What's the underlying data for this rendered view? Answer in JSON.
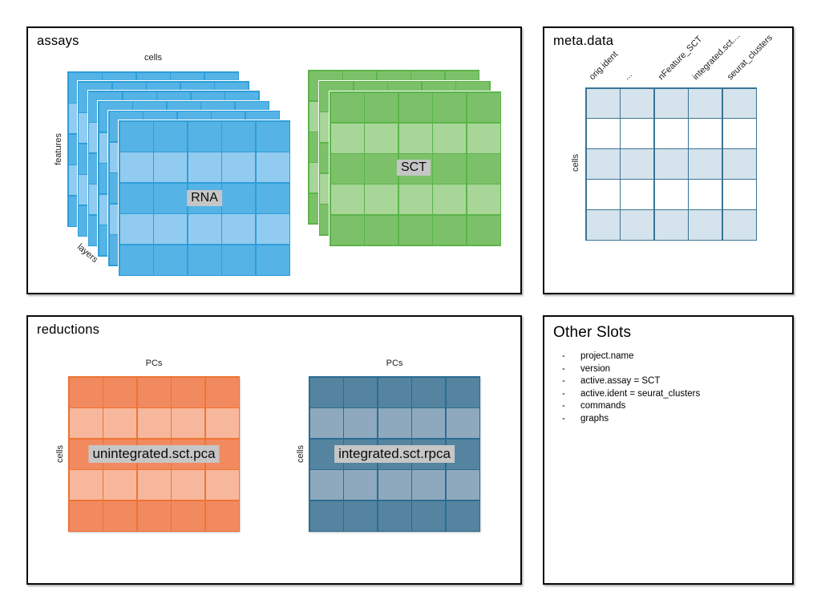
{
  "assays": {
    "title": "assays",
    "axis_top": "cells",
    "axis_left": "features",
    "axis_stack": "layers",
    "label_bg": "#c6c6c6",
    "stacks": [
      {
        "name": "RNA",
        "layers": 6,
        "rows": 5,
        "cols": 5,
        "color_dark": "#55b3e6",
        "color_light": "#92cbf0",
        "color_border": "#2f9ed8"
      },
      {
        "name": "SCT",
        "layers": 3,
        "rows": 5,
        "cols": 5,
        "color_dark": "#7cc169",
        "color_light": "#a8d598",
        "color_border": "#5bb44a"
      }
    ]
  },
  "meta": {
    "title": "meta.data",
    "axis_left": "cells",
    "columns": [
      "orig.ident",
      "...",
      "nFeature_SCT",
      "integrated.sct....",
      "seurat_clusters"
    ],
    "rows": 5,
    "cols": 5,
    "fill": "#d5e3ec",
    "border": "#3a7495"
  },
  "reductions": {
    "title": "reductions",
    "grids": [
      {
        "name": "unintegrated.sct.pca",
        "axis_top": "PCs",
        "axis_left": "cells",
        "rows": 5,
        "cols": 5,
        "color_dark": "#f28a60",
        "color_light": "#f7b79c",
        "color_border": "#ec7434"
      },
      {
        "name": "integrated.sct.rpca",
        "axis_top": "PCs",
        "axis_left": "cells",
        "rows": 5,
        "cols": 5,
        "color_dark": "#54849f",
        "color_light": "#8ea9bd",
        "color_border": "#2b6c93"
      }
    ]
  },
  "other": {
    "title": "Other Slots",
    "items": [
      "project.name",
      "version",
      "active.assay = SCT",
      "active.ident = seurat_clusters",
      "commands",
      "graphs"
    ]
  }
}
